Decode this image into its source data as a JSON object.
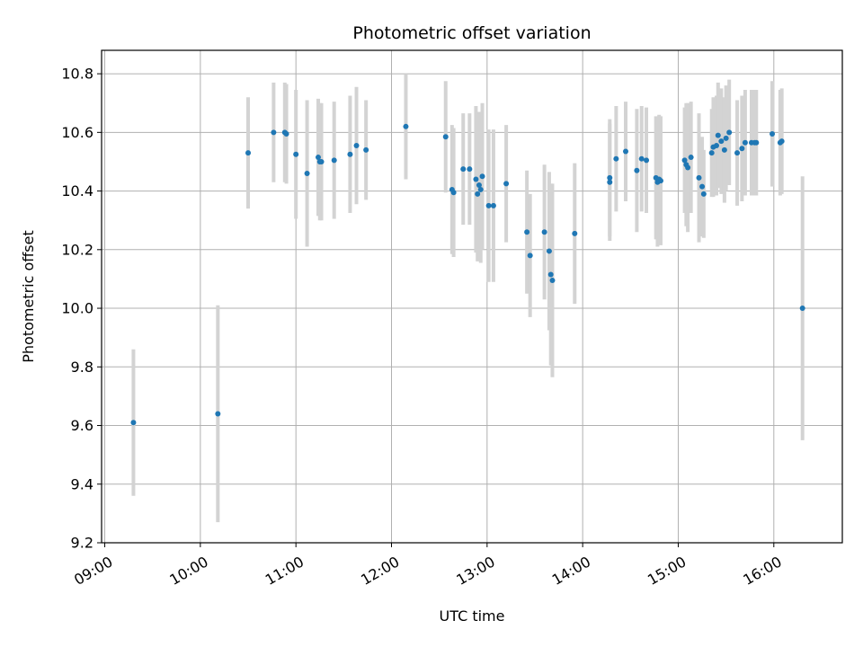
{
  "chart_data": {
    "type": "scatter",
    "title": "Photometric offset variation",
    "xlabel": "UTC time",
    "ylabel": "Photometric offset",
    "xlim": [
      "08:58",
      "16:43"
    ],
    "ylim": [
      9.2,
      10.88
    ],
    "x_ticks": [
      "09:00",
      "10:00",
      "11:00",
      "12:00",
      "13:00",
      "14:00",
      "15:00",
      "16:00"
    ],
    "y_ticks": [
      "9.2",
      "9.4",
      "9.6",
      "9.8",
      "10.0",
      "10.2",
      "10.4",
      "10.6",
      "10.8"
    ],
    "grid": true,
    "marker_color": "#1f77b4",
    "errorbar_color": "#d3d3d3",
    "series": [
      {
        "x": [
          "09:18",
          "10:11",
          "10:30",
          "10:46",
          "10:53",
          "10:54",
          "11:00",
          "11:07",
          "11:14",
          "11:15",
          "11:16",
          "11:24",
          "11:34",
          "11:38",
          "11:44",
          "12:09",
          "12:34",
          "12:38",
          "12:39",
          "12:45",
          "12:49",
          "12:53",
          "12:54",
          "12:55",
          "12:56",
          "12:57",
          "13:01",
          "13:04",
          "13:12",
          "13:25",
          "13:27",
          "13:36",
          "13:39",
          "13:40",
          "13:41",
          "13:55",
          "14:17",
          "14:17",
          "14:21",
          "14:27",
          "14:34",
          "14:37",
          "14:40",
          "14:46",
          "14:47",
          "14:48",
          "14:49",
          "15:04",
          "15:05",
          "15:06",
          "15:08",
          "15:13",
          "15:15",
          "15:16",
          "15:21",
          "15:22",
          "15:24",
          "15:25",
          "15:27",
          "15:29",
          "15:30",
          "15:32",
          "15:37",
          "15:40",
          "15:42",
          "15:46",
          "15:48",
          "15:49",
          "15:59",
          "16:04",
          "16:05",
          "16:18"
        ],
        "y": [
          9.61,
          9.64,
          10.53,
          10.6,
          10.6,
          10.595,
          10.525,
          10.46,
          10.515,
          10.5,
          10.5,
          10.505,
          10.525,
          10.555,
          10.54,
          10.62,
          10.585,
          10.405,
          10.395,
          10.475,
          10.475,
          10.44,
          10.39,
          10.42,
          10.405,
          10.45,
          10.35,
          10.35,
          10.425,
          10.26,
          10.18,
          10.26,
          10.195,
          10.115,
          10.095,
          10.255,
          10.43,
          10.445,
          10.51,
          10.535,
          10.47,
          10.51,
          10.505,
          10.445,
          10.43,
          10.44,
          10.435,
          10.505,
          10.49,
          10.48,
          10.515,
          10.445,
          10.415,
          10.39,
          10.53,
          10.55,
          10.555,
          10.59,
          10.57,
          10.54,
          10.58,
          10.6,
          10.53,
          10.545,
          10.565,
          10.565,
          10.565,
          10.565,
          10.595,
          10.565,
          10.57,
          10.0
        ],
        "yerr": [
          0.25,
          0.37,
          0.19,
          0.17,
          0.17,
          0.17,
          0.22,
          0.25,
          0.2,
          0.2,
          0.2,
          0.2,
          0.2,
          0.2,
          0.17,
          0.18,
          0.19,
          0.22,
          0.22,
          0.19,
          0.19,
          0.25,
          0.23,
          0.25,
          0.25,
          0.25,
          0.26,
          0.26,
          0.2,
          0.21,
          0.21,
          0.23,
          0.27,
          0.31,
          0.33,
          0.24,
          0.2,
          0.2,
          0.18,
          0.17,
          0.21,
          0.18,
          0.18,
          0.21,
          0.22,
          0.22,
          0.22,
          0.18,
          0.21,
          0.22,
          0.19,
          0.22,
          0.17,
          0.15,
          0.15,
          0.17,
          0.17,
          0.18,
          0.18,
          0.18,
          0.18,
          0.18,
          0.18,
          0.18,
          0.18,
          0.18,
          0.18,
          0.18,
          0.18,
          0.18,
          0.18,
          0.45
        ]
      }
    ]
  }
}
